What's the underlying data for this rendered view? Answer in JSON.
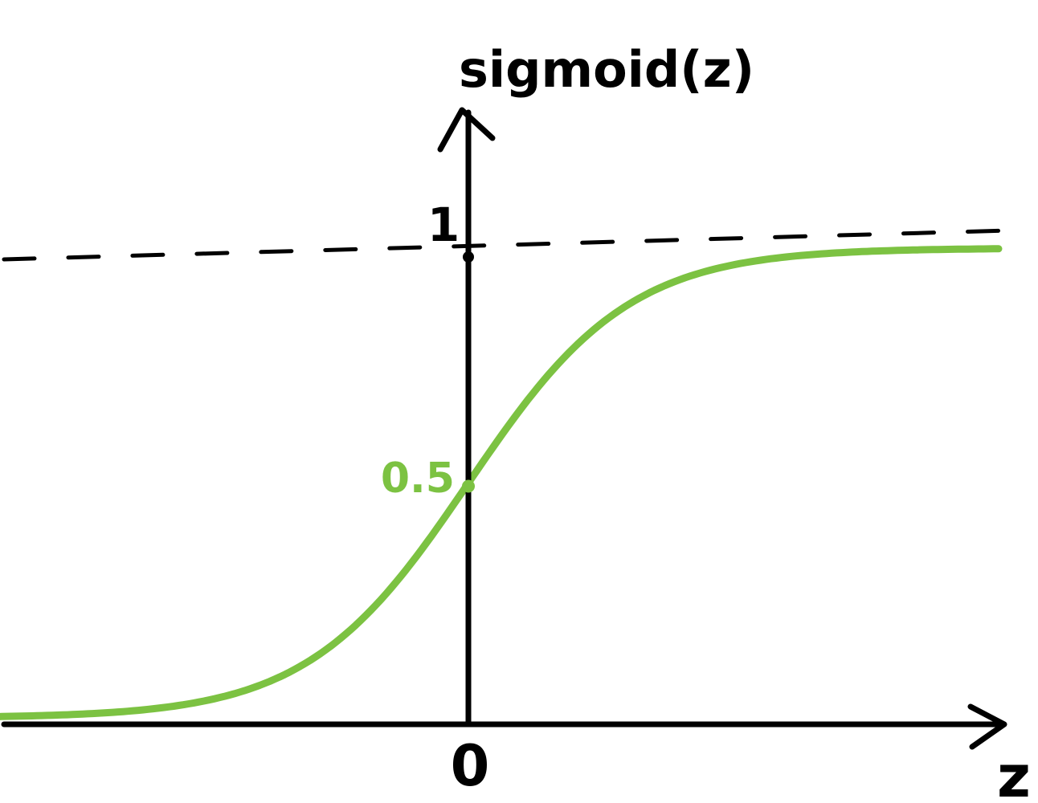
{
  "chart_data": {
    "type": "line",
    "title": "",
    "xlabel": "z",
    "ylabel": "sigmoid(z)",
    "xlim": [
      -6,
      7
    ],
    "ylim": [
      0,
      1.23
    ],
    "grid": false,
    "legend": "none",
    "y_ticks": [
      {
        "value": 1,
        "label": "1"
      },
      {
        "value": 0.5,
        "label": "0.5"
      }
    ],
    "x_ticks": [
      {
        "value": 0,
        "label": "0"
      }
    ],
    "reference_lines": [
      {
        "axis": "y",
        "value": 1,
        "style": "dashed"
      }
    ],
    "series": [
      {
        "function": "sigmoid",
        "x": [
          -6,
          -5,
          -4,
          -3,
          -2,
          -1,
          0,
          1,
          2,
          3,
          4,
          5,
          6.6
        ],
        "values": [
          0.0025,
          0.0067,
          0.018,
          0.047,
          0.119,
          0.269,
          0.5,
          0.731,
          0.881,
          0.953,
          0.982,
          0.993,
          0.9986
        ]
      }
    ],
    "marked_points": [
      {
        "x": 0,
        "y": 0.5
      },
      {
        "x": 0,
        "y": 1
      }
    ],
    "colors": {
      "axis": "#000000",
      "curve": "#7cc242",
      "label_0_5": "#7cc242"
    }
  }
}
